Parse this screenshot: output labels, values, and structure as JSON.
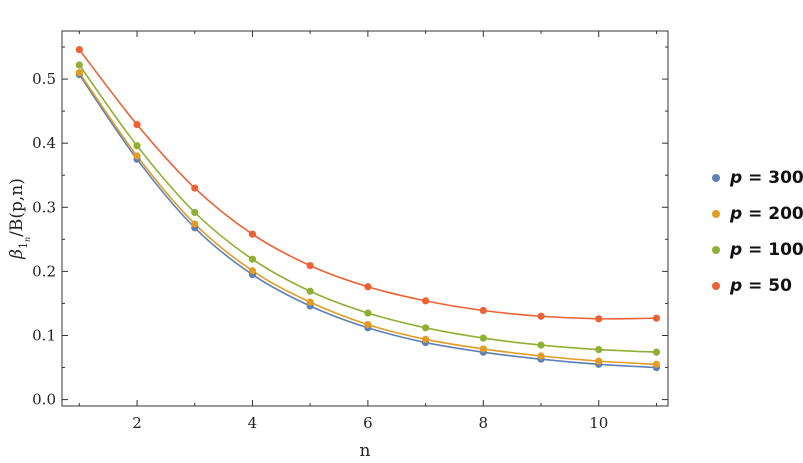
{
  "chart_data": {
    "type": "line",
    "xlabel": "n",
    "ylabel_base": "β",
    "ylabel_sub": "1",
    "ylabel_subsub": "n",
    "ylabel_rest": "/B(p,n)",
    "xlim": [
      0.7,
      11.2
    ],
    "ylim": [
      -0.01,
      0.575
    ],
    "xticks": [
      2,
      4,
      6,
      8,
      10
    ],
    "yticks": [
      0.0,
      0.1,
      0.2,
      0.3,
      0.4,
      0.5
    ],
    "ytick_labels": [
      "0.0",
      "0.1",
      "0.2",
      "0.3",
      "0.4",
      "0.5"
    ],
    "xtick_labels": [
      "2",
      "4",
      "6",
      "8",
      "10"
    ],
    "legend_position": "right",
    "x": [
      1,
      2,
      3,
      4,
      5,
      6,
      7,
      8,
      9,
      10,
      11
    ],
    "series": [
      {
        "name": "p = 300",
        "var": "p",
        "label": " = 300",
        "color": "#5e81b5",
        "values": [
          0.507,
          0.375,
          0.268,
          0.195,
          0.146,
          0.112,
          0.089,
          0.074,
          0.063,
          0.055,
          0.05
        ]
      },
      {
        "name": "p = 200",
        "var": "p",
        "label": " = 200",
        "color": "#e19c24",
        "values": [
          0.51,
          0.38,
          0.274,
          0.201,
          0.152,
          0.117,
          0.094,
          0.079,
          0.068,
          0.06,
          0.055
        ]
      },
      {
        "name": "p = 100",
        "var": "p",
        "label": " = 100",
        "color": "#8fb032",
        "values": [
          0.522,
          0.396,
          0.292,
          0.219,
          0.169,
          0.135,
          0.112,
          0.096,
          0.085,
          0.078,
          0.074
        ]
      },
      {
        "name": "p = 50",
        "var": "p",
        "label": " = 50",
        "color": "#eb6235",
        "values": [
          0.546,
          0.429,
          0.33,
          0.258,
          0.209,
          0.176,
          0.154,
          0.139,
          0.13,
          0.126,
          0.127
        ]
      }
    ]
  }
}
